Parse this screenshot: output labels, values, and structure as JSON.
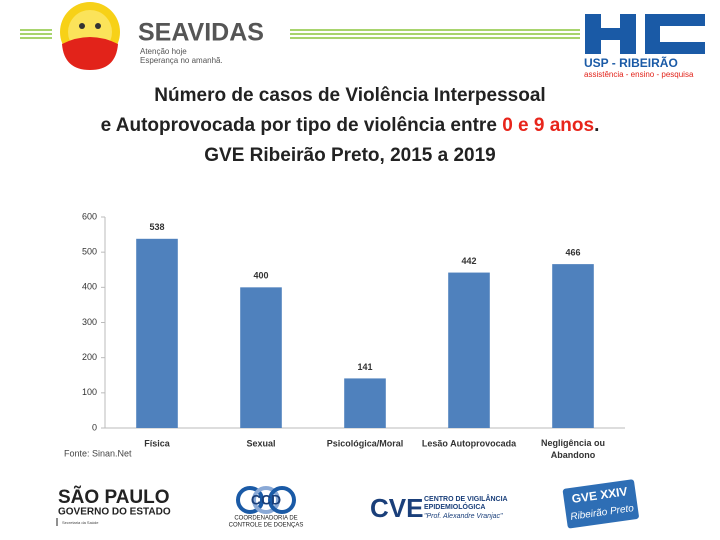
{
  "header": {
    "left_logo": {
      "name": "SEAVIDAS",
      "tagline_1": "Atenção hoje",
      "tagline_2": "Esperança no amanhã."
    },
    "right_logo": {
      "name": "USP - RIBEIRÃO",
      "tagline": "assistência - ensino - pesquisa"
    }
  },
  "chart_data": {
    "type": "bar",
    "title": [
      "Número de casos de Violência Interpessoal",
      "e Autoprovocada por tipo de violência entre",
      "0 e 9 anos",
      ".",
      "GVE Ribeirão Preto, 2015 a 2019"
    ],
    "title_highlight_color": "#e8251b",
    "categories": [
      "Física",
      "Sexual",
      "Psicológica/Moral",
      "Lesão Autoprovocada",
      "Negligência ou Abandono"
    ],
    "values": [
      538,
      400,
      141,
      442,
      466
    ],
    "color": "#4f81bd",
    "ylim": [
      0,
      600
    ],
    "yticks": [
      0,
      100,
      200,
      300,
      400,
      500,
      600
    ],
    "grid": false,
    "source": "Fonte: Sinan.Net"
  },
  "footer": {
    "sp": {
      "line_1": "SÃO PAULO",
      "line_2": "GOVERNO DO ESTADO",
      "line_3": "Secretaria da Saúde"
    },
    "ccd": {
      "name": "CCD",
      "line_1": "COORDENADORIA DE",
      "line_2": "CONTROLE DE DOENÇAS"
    },
    "cve": {
      "name": "CVE",
      "line_1": "CENTRO DE VIGILÂNCIA",
      "line_2": "EPIDEMIOLÓGICA",
      "line_3": "\"Prof. Alexandre Vranjac\""
    },
    "gve": {
      "name": "GVE XXIV",
      "city": "Ribeirão Preto"
    }
  }
}
